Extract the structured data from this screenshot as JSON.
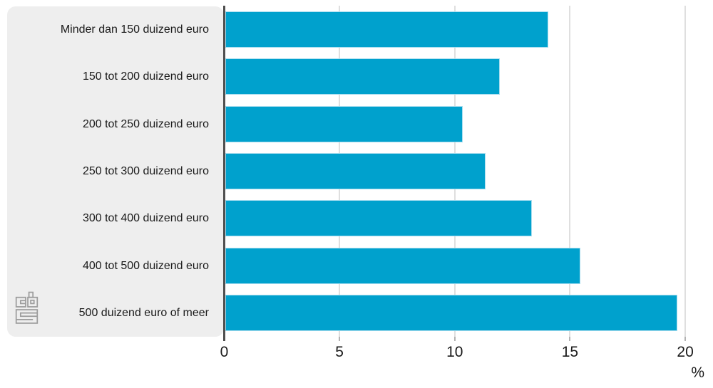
{
  "chart_data": {
    "type": "bar",
    "orientation": "horizontal",
    "title": "",
    "categories": [
      "Minder dan 150 duizend euro",
      "150 tot 200 duizend euro",
      "200 tot 250 duizend euro",
      "250 tot 300 duizend euro",
      "300 tot 400 duizend euro",
      "400 tot 500 duizend euro",
      "500 duizend euro of meer"
    ],
    "values": [
      14.0,
      11.9,
      10.3,
      11.3,
      13.3,
      15.4,
      19.6
    ],
    "unit_label": "%",
    "x_ticks": [
      0,
      5,
      10,
      15,
      20
    ],
    "xlim": [
      0,
      20
    ],
    "grid": "vertical-on",
    "legend": "none",
    "colors": {
      "bar_fill": "#00a1cd",
      "bar_border": "#a6dcee",
      "label_panel": "#eeeeee",
      "axis_line": "#4f4f4f",
      "gridline": "#dfdfdf",
      "tick_stub": "#b3b3b3",
      "text": "#1a1a1a",
      "logo": "#9c9c9c"
    }
  },
  "branding": {
    "logo_name": "cbs-logo"
  }
}
